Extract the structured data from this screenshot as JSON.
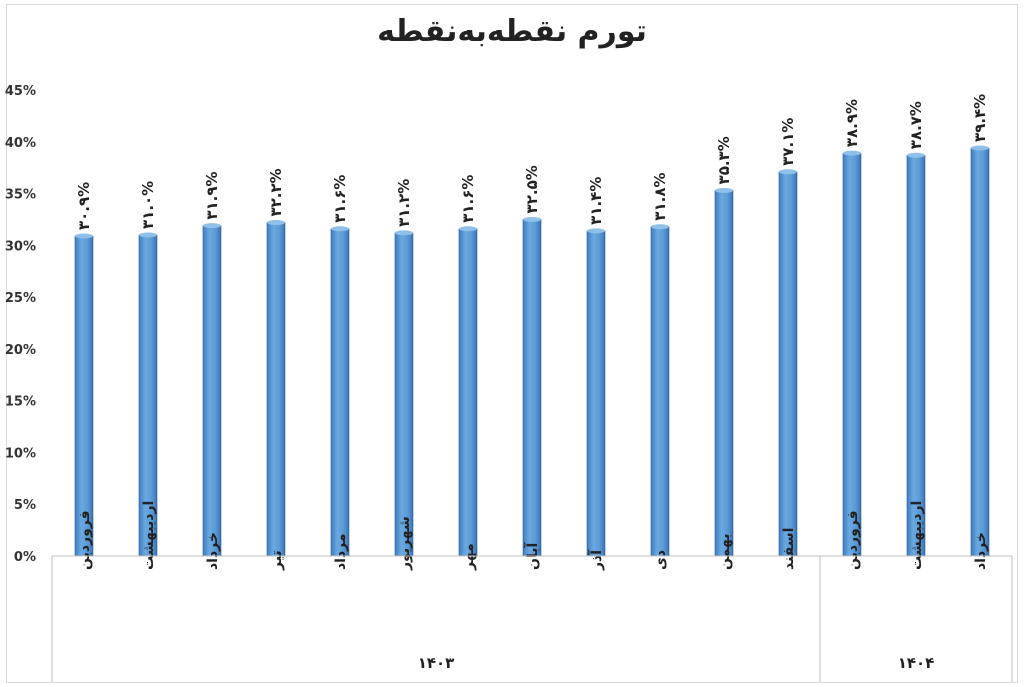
{
  "chart_data": {
    "type": "bar",
    "title": "تورم نقطه‌به‌نقطه",
    "categories": [
      "فروردین",
      "اردیبهشت",
      "خرداد",
      "تیر",
      "مرداد",
      "شهریور",
      "مهر",
      "آبان",
      "آذر",
      "دی",
      "بهمن",
      "اسفند",
      "فروردین",
      "اردیبهشت",
      "خرداد"
    ],
    "values": [
      30.9,
      31.0,
      31.9,
      32.2,
      31.6,
      31.2,
      31.6,
      32.5,
      31.4,
      31.8,
      35.3,
      37.1,
      38.9,
      38.7,
      39.4
    ],
    "data_labels": [
      "۳۰.۹%",
      "۳۱.۰%",
      "۳۱.۹%",
      "۳۲.۲%",
      "۳۱.۶%",
      "۳۱.۲%",
      "۳۱.۶%",
      "۳۲.۵%",
      "۳۱.۴%",
      "۳۱.۸%",
      "۳۵.۳%",
      "۳۷.۱%",
      "۳۸.۹%",
      "۳۸.۷%",
      "۳۹.۴%"
    ],
    "groups": [
      {
        "label": "۱۴۰۳",
        "count": 12
      },
      {
        "label": "۱۴۰۴",
        "count": 3
      }
    ],
    "yticks": [
      "0%",
      "5%",
      "10%",
      "15%",
      "20%",
      "25%",
      "30%",
      "35%",
      "40%",
      "45%"
    ],
    "ylim": [
      0,
      45
    ],
    "xlabel": "",
    "ylabel": "",
    "grid": false,
    "bar_color": "#5b9bd5"
  }
}
